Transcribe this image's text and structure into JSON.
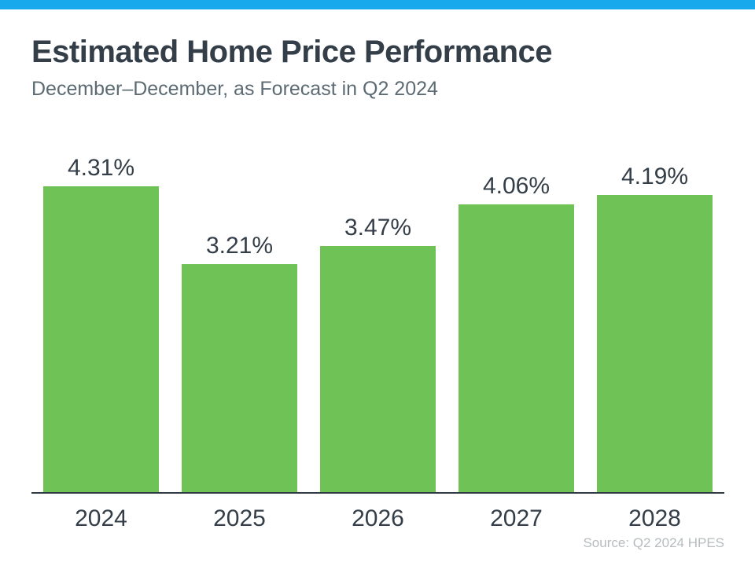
{
  "header": {
    "title": "Estimated Home Price Performance",
    "subtitle": "December–December, as Forecast in Q2 2024"
  },
  "source_note": "Source: Q2 2024 HPES",
  "colors": {
    "accent_bar": "#17A9EB",
    "bar_fill": "#6EC256",
    "text_dark": "#343E48",
    "subtitle_gray": "#5C6B73",
    "axis": "#313B42",
    "source_gray": "#B6BCBE"
  },
  "chart_data": {
    "type": "bar",
    "categories": [
      "2024",
      "2025",
      "2026",
      "2027",
      "2028"
    ],
    "values": [
      4.31,
      3.21,
      3.47,
      4.06,
      4.19
    ],
    "value_labels": [
      "4.31%",
      "3.21%",
      "3.47%",
      "4.06%",
      "4.19%"
    ],
    "title": "Estimated Home Price Performance",
    "subtitle": "December–December, as Forecast in Q2 2024",
    "xlabel": "",
    "ylabel": "",
    "ylim": [
      0,
      4.31
    ],
    "grid": false,
    "legend": false,
    "bar_color": "#6EC256",
    "value_label_format": "percent"
  }
}
